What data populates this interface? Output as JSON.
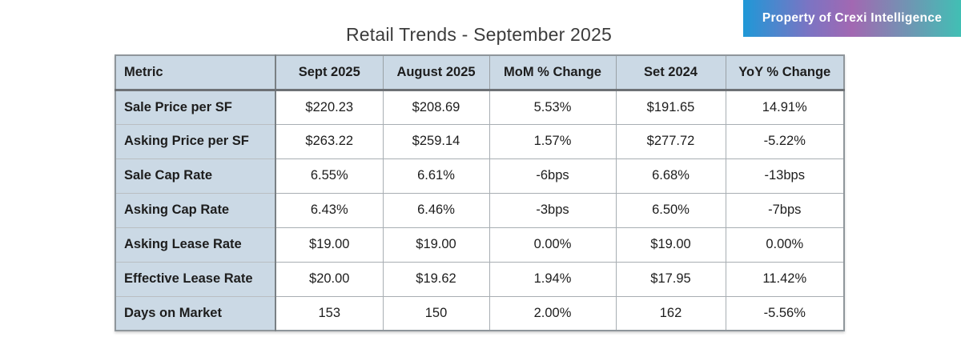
{
  "badge": {
    "label": "Property of Crexi Intelligence"
  },
  "colors": {
    "badge_gradient_left": "#1f98d7",
    "badge_gradient_mid": "#a268b2",
    "badge_gradient_right": "#41bfb4",
    "table_header_bg": "#cbd9e5",
    "metric_column_bg": "#cbd9e5",
    "grid_border": "#9aa1a6",
    "title_text": "#3c3c3c"
  },
  "chart_data": {
    "type": "table",
    "title": "Retail Trends - September 2025",
    "columns": [
      "Metric",
      "Sept 2025",
      "August 2025",
      "MoM % Change",
      "Set 2024",
      "YoY % Change"
    ],
    "rows": [
      [
        "Sale Price per SF",
        "$220.23",
        "$208.69",
        "5.53%",
        "$191.65",
        "14.91%"
      ],
      [
        "Asking Price per SF",
        "$263.22",
        "$259.14",
        "1.57%",
        "$277.72",
        "-5.22%"
      ],
      [
        "Sale Cap Rate",
        "6.55%",
        "6.61%",
        "-6bps",
        "6.68%",
        "-13bps"
      ],
      [
        "Asking Cap Rate",
        "6.43%",
        "6.46%",
        "-3bps",
        "6.50%",
        "-7bps"
      ],
      [
        "Asking Lease Rate",
        "$19.00",
        "$19.00",
        "0.00%",
        "$19.00",
        "0.00%"
      ],
      [
        "Effective Lease Rate",
        "$20.00",
        "$19.62",
        "1.94%",
        "$17.95",
        "11.42%"
      ],
      [
        "Days on Market",
        "153",
        "150",
        "2.00%",
        "162",
        "-5.56%"
      ]
    ]
  }
}
